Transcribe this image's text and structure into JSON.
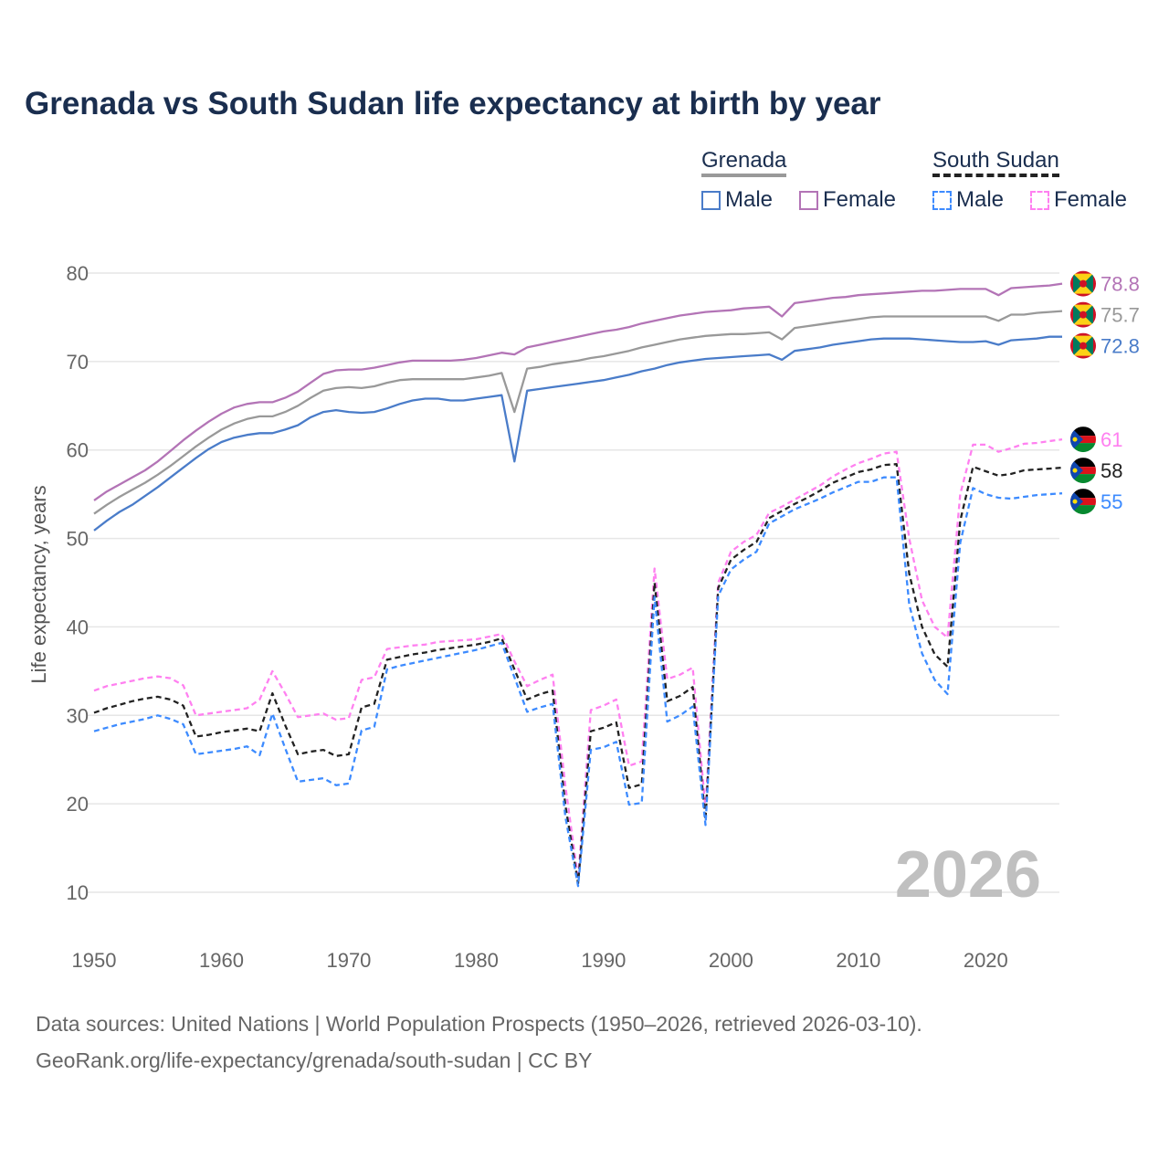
{
  "title": "Grenada vs South Sudan life expectancy at birth by year",
  "legend": {
    "groups": [
      {
        "country": "Grenada",
        "items": [
          "Male",
          "Female"
        ],
        "underline_color": "#999999"
      },
      {
        "country": "South Sudan",
        "items": [
          "Male",
          "Female"
        ],
        "underline_color": "#222222"
      }
    ]
  },
  "watermark_year": "2026",
  "footer": {
    "line1": "Data sources: United Nations | World Population Prospects (1950–2026, retrieved 2026-03-10).",
    "line2": "GeoRank.org/life-expectancy/grenada/south-sudan | CC BY"
  },
  "chart_data": {
    "type": "line",
    "title": "Grenada vs South Sudan life expectancy at birth by year",
    "xlabel": "",
    "ylabel": "Life expectancy, years",
    "xlim": [
      1950,
      2026
    ],
    "ylim": [
      10,
      80
    ],
    "xticks": [
      1950,
      1960,
      1970,
      1980,
      1990,
      2000,
      2010,
      2020
    ],
    "yticks": [
      10,
      20,
      30,
      40,
      50,
      60,
      70,
      80
    ],
    "grid": true,
    "legend_position": "top-right",
    "x_start": 1950,
    "series": [
      {
        "name": "Grenada Female",
        "color": "#b374b6",
        "dashed": false,
        "end_label": "78.8",
        "flag": "grenada-flag-icon",
        "values": [
          54.3,
          55.3,
          56.1,
          56.9,
          57.7,
          58.7,
          59.9,
          61.1,
          62.2,
          63.2,
          64.1,
          64.8,
          65.2,
          65.4,
          65.4,
          65.9,
          66.6,
          67.6,
          68.6,
          69.0,
          69.1,
          69.1,
          69.3,
          69.6,
          69.9,
          70.1,
          70.1,
          70.1,
          70.1,
          70.2,
          70.4,
          70.7,
          71.0,
          70.8,
          71.6,
          71.9,
          72.2,
          72.5,
          72.8,
          73.1,
          73.4,
          73.6,
          73.9,
          74.3,
          74.6,
          74.9,
          75.2,
          75.4,
          75.6,
          75.7,
          75.8,
          76.0,
          76.1,
          76.2,
          75.1,
          76.6,
          76.8,
          77.0,
          77.2,
          77.3,
          77.5,
          77.6,
          77.7,
          77.8,
          77.9,
          78.0,
          78.0,
          78.1,
          78.2,
          78.2,
          78.2,
          77.5,
          78.3,
          78.4,
          78.5,
          78.6,
          78.8
        ]
      },
      {
        "name": "Grenada Total",
        "color": "#999999",
        "dashed": false,
        "end_label": "75.7",
        "flag": "grenada-flag-icon",
        "values": [
          52.8,
          53.8,
          54.7,
          55.5,
          56.3,
          57.2,
          58.2,
          59.3,
          60.4,
          61.4,
          62.3,
          63.0,
          63.5,
          63.8,
          63.8,
          64.3,
          65.0,
          65.9,
          66.7,
          67.0,
          67.1,
          67.0,
          67.2,
          67.6,
          67.9,
          68.0,
          68.0,
          68.0,
          68.0,
          68.0,
          68.2,
          68.4,
          68.7,
          64.3,
          69.2,
          69.4,
          69.7,
          69.9,
          70.1,
          70.4,
          70.6,
          70.9,
          71.2,
          71.6,
          71.9,
          72.2,
          72.5,
          72.7,
          72.9,
          73.0,
          73.1,
          73.1,
          73.2,
          73.3,
          72.5,
          73.8,
          74.0,
          74.2,
          74.4,
          74.6,
          74.8,
          75.0,
          75.1,
          75.1,
          75.1,
          75.1,
          75.1,
          75.1,
          75.1,
          75.1,
          75.1,
          74.6,
          75.3,
          75.3,
          75.5,
          75.6,
          75.7
        ]
      },
      {
        "name": "Grenada Male",
        "color": "#4a7cc9",
        "dashed": false,
        "end_label": "72.8",
        "flag": "grenada-flag-icon",
        "values": [
          50.9,
          52.0,
          53.0,
          53.8,
          54.8,
          55.8,
          56.9,
          58.0,
          59.1,
          60.1,
          60.9,
          61.4,
          61.7,
          61.9,
          61.9,
          62.3,
          62.8,
          63.7,
          64.3,
          64.5,
          64.3,
          64.2,
          64.3,
          64.7,
          65.2,
          65.6,
          65.8,
          65.8,
          65.6,
          65.6,
          65.8,
          66.0,
          66.2,
          58.7,
          66.7,
          66.9,
          67.1,
          67.3,
          67.5,
          67.7,
          67.9,
          68.2,
          68.5,
          68.9,
          69.2,
          69.6,
          69.9,
          70.1,
          70.3,
          70.4,
          70.5,
          70.6,
          70.7,
          70.8,
          70.2,
          71.2,
          71.4,
          71.6,
          71.9,
          72.1,
          72.3,
          72.5,
          72.6,
          72.6,
          72.6,
          72.5,
          72.4,
          72.3,
          72.2,
          72.2,
          72.3,
          71.9,
          72.4,
          72.5,
          72.6,
          72.8,
          72.8
        ]
      },
      {
        "name": "South Sudan Female",
        "color": "#ff80f0",
        "dashed": true,
        "end_label": "61",
        "flag": "south-sudan-flag-icon",
        "values": [
          32.8,
          33.3,
          33.6,
          33.9,
          34.2,
          34.4,
          34.2,
          33.4,
          30.0,
          30.2,
          30.4,
          30.6,
          30.8,
          31.8,
          35.0,
          32.5,
          29.8,
          30.0,
          30.2,
          29.5,
          29.7,
          34.0,
          34.3,
          37.5,
          37.7,
          37.9,
          38.0,
          38.3,
          38.4,
          38.5,
          38.6,
          38.9,
          39.2,
          36.1,
          33.3,
          34.0,
          34.6,
          22.0,
          11.5,
          30.6,
          31.1,
          31.8,
          24.3,
          24.8,
          46.6,
          34.1,
          34.6,
          35.4,
          19.5,
          45.0,
          48.5,
          49.6,
          50.4,
          52.9,
          53.6,
          54.4,
          55.2,
          56.0,
          57.0,
          57.8,
          58.5,
          59.0,
          59.6,
          59.8,
          50.0,
          43.0,
          40.0,
          38.8,
          55.0,
          60.6,
          60.6,
          59.8,
          60.2,
          60.7,
          60.8,
          61.0,
          61.2
        ]
      },
      {
        "name": "South Sudan Total",
        "color": "#222222",
        "dashed": true,
        "end_label": "58",
        "flag": "south-sudan-flag-icon",
        "values": [
          30.3,
          30.8,
          31.2,
          31.6,
          31.9,
          32.1,
          31.8,
          31.1,
          27.6,
          27.8,
          28.1,
          28.3,
          28.5,
          28.2,
          32.5,
          28.9,
          25.6,
          25.9,
          26.1,
          25.4,
          25.6,
          30.9,
          31.3,
          36.3,
          36.6,
          36.9,
          37.1,
          37.4,
          37.6,
          37.8,
          38.0,
          38.3,
          38.7,
          35.2,
          31.8,
          32.4,
          32.8,
          19.8,
          11.0,
          28.2,
          28.6,
          29.2,
          21.8,
          22.2,
          45.0,
          31.6,
          32.2,
          33.2,
          18.2,
          44.4,
          47.6,
          48.7,
          49.6,
          52.3,
          53.1,
          53.9,
          54.6,
          55.4,
          56.3,
          56.9,
          57.5,
          57.8,
          58.3,
          58.4,
          46.0,
          40.0,
          36.9,
          35.5,
          52.0,
          58.1,
          57.6,
          57.1,
          57.3,
          57.7,
          57.8,
          57.9,
          58.0
        ]
      },
      {
        "name": "South Sudan Male",
        "color": "#3d8bff",
        "dashed": true,
        "end_label": "55",
        "flag": "south-sudan-flag-icon",
        "values": [
          28.2,
          28.6,
          29.0,
          29.3,
          29.6,
          30.0,
          29.6,
          29.0,
          25.6,
          25.8,
          26.0,
          26.2,
          26.5,
          25.5,
          30.2,
          26.3,
          22.5,
          22.7,
          22.9,
          22.1,
          22.3,
          28.3,
          28.7,
          35.2,
          35.6,
          35.9,
          36.2,
          36.5,
          36.8,
          37.1,
          37.4,
          37.8,
          38.2,
          34.3,
          30.4,
          30.9,
          31.3,
          18.5,
          10.7,
          26.1,
          26.4,
          27.0,
          19.9,
          20.1,
          43.4,
          29.3,
          30.0,
          31.0,
          17.6,
          43.5,
          46.5,
          47.6,
          48.5,
          51.7,
          52.5,
          53.3,
          53.9,
          54.5,
          55.2,
          55.8,
          56.4,
          56.4,
          56.9,
          56.9,
          42.5,
          37.0,
          34.0,
          32.4,
          49.5,
          55.7,
          55.0,
          54.6,
          54.5,
          54.7,
          54.9,
          55.0,
          55.1
        ]
      }
    ]
  }
}
